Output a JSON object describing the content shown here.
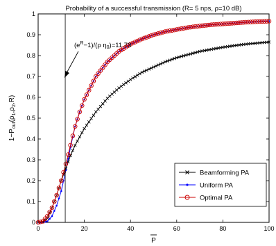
{
  "chart_data": {
    "type": "line",
    "title": "Probability of a successful transmission (R= 5 nps, ρ=10 dB)",
    "xlabel": "P",
    "ylabel": "1−P_out(ρ_1,ρ_2,R)",
    "xlim": [
      0,
      100
    ],
    "ylim": [
      0,
      1
    ],
    "xticks": [
      0,
      20,
      40,
      60,
      80,
      100
    ],
    "yticks": [
      0,
      0.1,
      0.2,
      0.3,
      0.4,
      0.5,
      0.6,
      0.7,
      0.8,
      0.9,
      1
    ],
    "grid": false,
    "legend_position": "lower-right",
    "annotation": {
      "text": "(e^R−1)/(ρ η_0)=11.73",
      "x": 11.73
    },
    "x": [
      0,
      2,
      4,
      6,
      8,
      10,
      12,
      14,
      16,
      18,
      20,
      25,
      30,
      35,
      40,
      45,
      50,
      55,
      60,
      65,
      70,
      75,
      80,
      85,
      90,
      95,
      100
    ],
    "series": [
      {
        "name": "Beamforming PA",
        "color": "#000000",
        "marker": "x",
        "values": [
          0,
          0.002,
          0.02,
          0.07,
          0.13,
          0.2,
          0.26,
          0.32,
          0.37,
          0.41,
          0.45,
          0.53,
          0.595,
          0.645,
          0.685,
          0.72,
          0.745,
          0.77,
          0.79,
          0.805,
          0.82,
          0.83,
          0.84,
          0.848,
          0.855,
          0.86,
          0.865
        ]
      },
      {
        "name": "Uniform PA",
        "color": "#0000ff",
        "marker": "dot",
        "values": [
          0,
          0.0,
          0.005,
          0.03,
          0.08,
          0.15,
          0.25,
          0.36,
          0.46,
          0.53,
          0.59,
          0.7,
          0.77,
          0.82,
          0.855,
          0.88,
          0.9,
          0.915,
          0.925,
          0.935,
          0.942,
          0.948,
          0.952,
          0.956,
          0.96,
          0.963,
          0.965
        ]
      },
      {
        "name": "Optimal PA",
        "color": "#cc0000",
        "marker": "circle",
        "values": [
          0,
          0.005,
          0.03,
          0.07,
          0.13,
          0.2,
          0.28,
          0.37,
          0.46,
          0.53,
          0.59,
          0.7,
          0.77,
          0.82,
          0.855,
          0.88,
          0.9,
          0.915,
          0.925,
          0.935,
          0.942,
          0.948,
          0.952,
          0.956,
          0.96,
          0.963,
          0.965
        ]
      }
    ]
  }
}
